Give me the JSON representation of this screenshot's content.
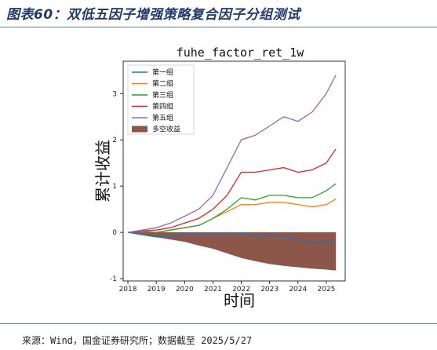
{
  "figure": {
    "title": "图表60：双低五因子增强策略复合因子分组测试",
    "source": "来源：Wind，国金证券研究所；数据截至 2025/5/27"
  },
  "chart_data": {
    "type": "line",
    "title": "fuhe_factor_ret_1w",
    "xlabel": "时间",
    "ylabel": "累计收益",
    "x_ticks": [
      "2018",
      "2019",
      "2020",
      "2021",
      "2022",
      "2023",
      "2024",
      "2025"
    ],
    "y_ticks": [
      "-1",
      "0",
      "1",
      "2",
      "3"
    ],
    "xlim": [
      "2017-11",
      "2025-09"
    ],
    "ylim": [
      -1.05,
      3.7
    ],
    "legend_position": "upper-left",
    "grid": false,
    "x": [
      "2018-01",
      "2018-07",
      "2019-01",
      "2019-07",
      "2020-01",
      "2020-07",
      "2021-01",
      "2021-07",
      "2022-01",
      "2022-07",
      "2023-01",
      "2023-07",
      "2024-01",
      "2024-07",
      "2025-01",
      "2025-05"
    ],
    "series": [
      {
        "name": "第一组",
        "color": "#1f77b4",
        "values": [
          0.0,
          -0.05,
          -0.1,
          -0.08,
          -0.05,
          -0.04,
          -0.03,
          -0.05,
          -0.02,
          -0.08,
          -0.05,
          -0.1,
          -0.15,
          -0.22,
          -0.2,
          -0.22
        ]
      },
      {
        "name": "第二组",
        "color": "#ff7f0e",
        "values": [
          0.0,
          0.02,
          0.0,
          0.05,
          0.1,
          0.15,
          0.3,
          0.45,
          0.6,
          0.6,
          0.65,
          0.65,
          0.6,
          0.55,
          0.6,
          0.72
        ]
      },
      {
        "name": "第三组",
        "color": "#2ca02c",
        "values": [
          0.0,
          0.02,
          0.0,
          0.05,
          0.1,
          0.15,
          0.3,
          0.5,
          0.75,
          0.7,
          0.8,
          0.8,
          0.75,
          0.75,
          0.9,
          1.05
        ]
      },
      {
        "name": "第四组",
        "color": "#d62728",
        "values": [
          0.0,
          0.03,
          0.05,
          0.1,
          0.2,
          0.3,
          0.5,
          0.8,
          1.3,
          1.3,
          1.35,
          1.4,
          1.3,
          1.35,
          1.5,
          1.8
        ]
      },
      {
        "name": "第五组",
        "color": "#9467bd",
        "values": [
          0.0,
          0.05,
          0.1,
          0.2,
          0.35,
          0.5,
          0.8,
          1.4,
          2.0,
          2.1,
          2.3,
          2.5,
          2.4,
          2.6,
          3.0,
          3.4
        ]
      }
    ],
    "area_series": {
      "name": "多空收益",
      "color": "#8c564b",
      "values": [
        0.0,
        -0.05,
        -0.1,
        -0.15,
        -0.2,
        -0.28,
        -0.35,
        -0.45,
        -0.55,
        -0.62,
        -0.68,
        -0.72,
        -0.75,
        -0.78,
        -0.8,
        -0.82
      ]
    }
  }
}
